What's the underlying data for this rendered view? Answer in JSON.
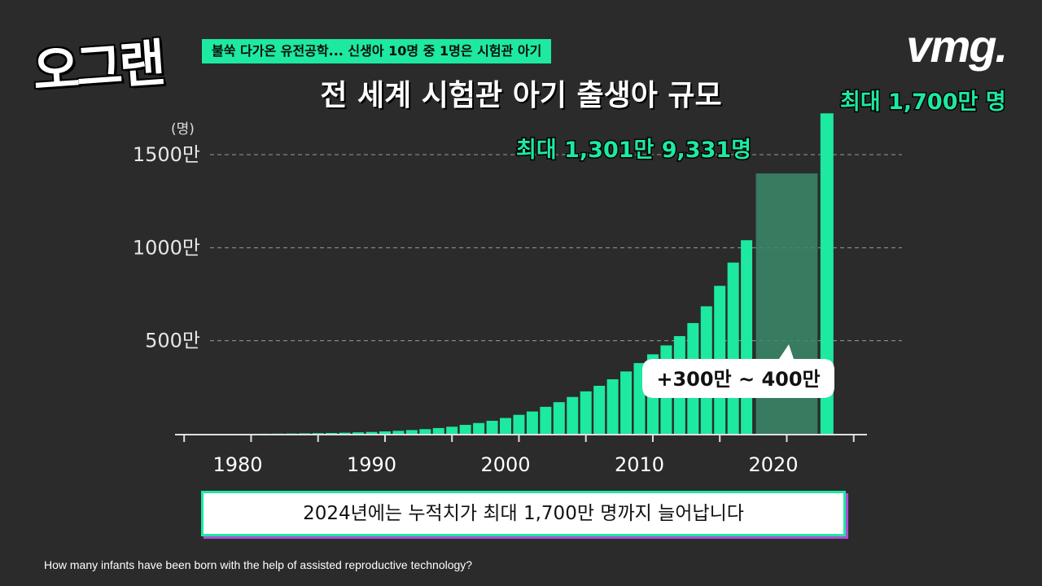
{
  "header": {
    "logo_text": "오그랜",
    "headline": "불쑥 다가온 유전공학... 신생아 10명 중 1명은 시험관 아기",
    "brand": "vmg."
  },
  "caption": "2024년에는 누적치가 최대 1,700만 명까지 늘어납니다",
  "question": "How many infants have been born with the help of assisted reproductive technology?",
  "colors": {
    "accent": "#1de9a0",
    "projection": "#3a8a6a",
    "background": "#2b2b2b"
  },
  "chart_data": {
    "type": "bar",
    "title": "전 세계 시험관 아기 출생아 규모",
    "ylabel": "(명)",
    "ylim": [
      0,
      1650
    ],
    "y_ticks": [
      {
        "value": 500,
        "label": "500만"
      },
      {
        "value": 1000,
        "label": "1000만"
      },
      {
        "value": 1500,
        "label": "1500만"
      }
    ],
    "x_ticks": [
      {
        "value": 1980,
        "label": "1980"
      },
      {
        "value": 1990,
        "label": "1990"
      },
      {
        "value": 2000,
        "label": "2000"
      },
      {
        "value": 2010,
        "label": "2010"
      },
      {
        "value": 2020,
        "label": "2020"
      }
    ],
    "xlim": [
      1975,
      2027
    ],
    "grid": true,
    "unit": "만 명",
    "x": [
      1978,
      1979,
      1980,
      1981,
      1982,
      1983,
      1984,
      1985,
      1986,
      1987,
      1988,
      1989,
      1990,
      1991,
      1992,
      1993,
      1994,
      1995,
      1996,
      1997,
      1998,
      1999,
      2000,
      2001,
      2002,
      2003,
      2004,
      2005,
      2006,
      2007,
      2008,
      2009,
      2010,
      2011,
      2012,
      2013,
      2014,
      2015,
      2016,
      2017,
      2018
    ],
    "values": [
      0,
      0,
      0,
      0.2,
      0.5,
      1,
      1.5,
      2.5,
      3.5,
      4.5,
      6,
      8,
      10,
      13,
      16,
      20,
      25,
      31,
      38,
      48,
      58,
      70,
      85,
      102,
      120,
      145,
      170,
      198,
      228,
      258,
      293,
      335,
      380,
      427,
      475,
      525,
      595,
      685,
      795,
      920,
      1040
    ],
    "projection": {
      "range": [
        2019,
        2023
      ],
      "value": 1301.9331,
      "callout": "+300만 ~ 400만"
    },
    "forecast_bar": {
      "x": 2024,
      "value": 1700
    },
    "annotations": [
      {
        "text": "최대 1,301만 9,331명",
        "value": 1301.9331
      },
      {
        "text": "최대 1,700만 명",
        "value": 1700
      }
    ]
  }
}
